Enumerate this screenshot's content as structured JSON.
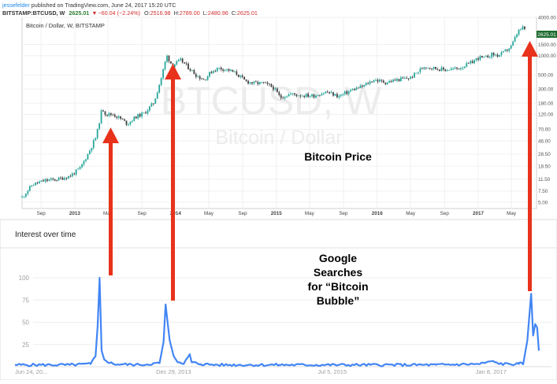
{
  "tv_header": {
    "publisher": "jessefelder",
    "publisher_suffix": " published on TradingView.com, June 24, 2017 15:20 UTC",
    "symbol": "BITSTAMP:BTCUSD, W",
    "last": "2625.01",
    "change": "−60.04 (−2.24%)",
    "o_label": "O:",
    "o": "2516.98",
    "h_label": "H:",
    "h": "2789.00",
    "l_label": "L:",
    "l": "2480.96",
    "c_label": "C:",
    "c": "2625.01"
  },
  "price_panel": {
    "title": "Bitcoin / Dollar, W, BITSTAMP",
    "watermark_symbol": "BTCUSD, W",
    "watermark_name": "Bitcoin / Dollar",
    "annotation": "Bitcoin Price",
    "price_tag": "2625.01"
  },
  "trends_panel": {
    "header": "Interest over time",
    "annotation_lines": [
      "Google",
      "Searches",
      "for “Bitcoin",
      "Bubble”"
    ]
  },
  "colors": {
    "up_candle": "#26a69a",
    "down_candle": "#424242",
    "trends_line": "#4285f4",
    "arrow": "#e8321c",
    "price_tag": "#1e6b2f"
  },
  "chart_data": [
    {
      "type": "candlestick",
      "title": "Bitcoin / Dollar, W, BITSTAMP",
      "scale": "log",
      "ylim": [
        4,
        4000
      ],
      "y_ticks": [
        "4000.00",
        "1500.00",
        "1000.00",
        "500.00",
        "300.00",
        "180.00",
        "120.00",
        "70.00",
        "46.00",
        "28.50",
        "18.50",
        "11.50",
        "7.50",
        "5.00"
      ],
      "x_ticks": [
        "Sep",
        "2013",
        "May",
        "Sep",
        "2014",
        "May",
        "Sep",
        "2015",
        "May",
        "Sep",
        "2016",
        "May",
        "Sep",
        "2017",
        "May"
      ],
      "x_tick_dates": [
        "2012-09-01",
        "2013-01-01",
        "2013-05-01",
        "2013-09-01",
        "2014-01-01",
        "2014-05-01",
        "2014-09-01",
        "2015-01-01",
        "2015-05-01",
        "2015-09-01",
        "2016-01-01",
        "2016-05-01",
        "2016-09-01",
        "2017-01-01",
        "2017-05-01"
      ],
      "series": [
        {
          "dates": [
            "2012-06-24",
            "2012-08-01",
            "2012-09-15",
            "2012-11-01",
            "2012-12-15",
            "2013-01-20",
            "2013-02-20",
            "2013-03-20",
            "2013-04-10",
            "2013-04-24",
            "2013-05-20",
            "2013-06-20",
            "2013-07-10",
            "2013-08-10",
            "2013-09-10",
            "2013-10-15",
            "2013-11-10",
            "2013-11-30",
            "2013-12-20",
            "2014-01-20",
            "2014-02-25",
            "2014-03-20",
            "2014-04-15",
            "2014-05-10",
            "2014-06-05",
            "2014-07-10",
            "2014-08-10",
            "2014-09-10",
            "2014-10-10",
            "2014-11-15",
            "2014-12-20",
            "2015-01-15",
            "2015-02-20",
            "2015-04-01",
            "2015-05-15",
            "2015-07-01",
            "2015-08-15",
            "2015-10-01",
            "2015-11-10",
            "2015-12-20",
            "2016-02-01",
            "2016-03-15",
            "2016-05-01",
            "2016-06-20",
            "2016-07-15",
            "2016-09-01",
            "2016-10-20",
            "2016-12-01",
            "2017-01-05",
            "2017-01-20",
            "2017-02-20",
            "2017-03-15",
            "2017-04-01",
            "2017-05-01",
            "2017-05-25",
            "2017-06-10",
            "2017-06-24"
          ],
          "close": [
            6.0,
            9.5,
            11.0,
            11.5,
            13.0,
            17.0,
            30.0,
            55.0,
            150.0,
            120.0,
            120.0,
            100.0,
            85.0,
            110.0,
            125.0,
            185.0,
            450.0,
            1000.0,
            700.0,
            850.0,
            600.0,
            480.0,
            420.0,
            560.0,
            640.0,
            600.0,
            520.0,
            400.0,
            370.0,
            370.0,
            320.0,
            220.0,
            250.0,
            240.0,
            235.0,
            270.0,
            230.0,
            290.0,
            330.0,
            420.0,
            380.0,
            420.0,
            450.0,
            680.0,
            650.0,
            600.0,
            630.0,
            750.0,
            950.0,
            900.0,
            1050.0,
            1000.0,
            1100.0,
            1400.0,
            2400.0,
            2700.0,
            2625.0
          ]
        }
      ],
      "notes": [
        "Weekly candles approximated from a smooth price path through the listed dates."
      ]
    },
    {
      "type": "line",
      "title": "Interest over time",
      "ylim": [
        0,
        100
      ],
      "y_ticks": [
        "100",
        "75",
        "50",
        "25"
      ],
      "x_ticks": [
        "Jun 24, 20...",
        "Dec 29, 2013",
        "Jul 5, 2015",
        "Jan 8, 2017"
      ],
      "x_tick_dates": [
        "2012-06-24",
        "2013-12-29",
        "2015-07-05",
        "2017-01-08"
      ],
      "series": [
        {
          "name": "Bitcoin Bubble",
          "dates": [
            "2012-06-24",
            "2013-01-01",
            "2013-03-15",
            "2013-04-01",
            "2013-04-08",
            "2013-04-15",
            "2013-04-22",
            "2013-05-01",
            "2013-06-01",
            "2013-09-01",
            "2013-11-10",
            "2013-11-24",
            "2013-12-01",
            "2013-12-08",
            "2013-12-15",
            "2013-12-29",
            "2014-01-12",
            "2014-02-02",
            "2014-02-23",
            "2014-03-02",
            "2014-04-01",
            "2014-06-01",
            "2015-01-01",
            "2015-07-01",
            "2016-01-01",
            "2016-07-01",
            "2016-12-01",
            "2017-01-08",
            "2017-02-15",
            "2017-04-15",
            "2017-05-01",
            "2017-05-15",
            "2017-05-28",
            "2017-06-04",
            "2017-06-11",
            "2017-06-18",
            "2017-06-24"
          ],
          "values": [
            2,
            2,
            3,
            12,
            45,
            100,
            18,
            8,
            3,
            2,
            4,
            28,
            70,
            50,
            30,
            12,
            5,
            3,
            14,
            5,
            3,
            2,
            2,
            2,
            2,
            2,
            3,
            6,
            3,
            3,
            4,
            30,
            82,
            35,
            48,
            44,
            18
          ]
        }
      ]
    }
  ]
}
